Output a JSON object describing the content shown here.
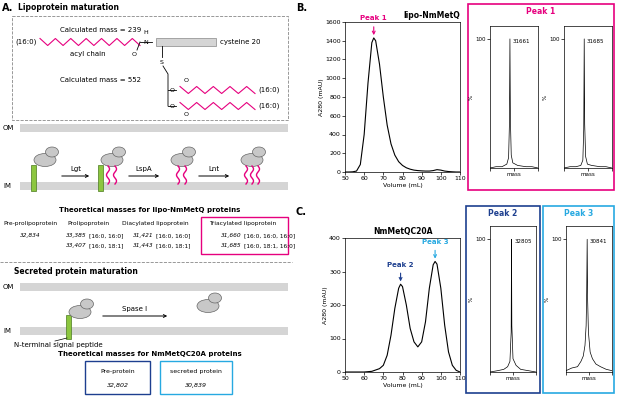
{
  "figure": {
    "panel_labels": [
      "A.",
      "B.",
      "C."
    ],
    "inset_boxes": [
      {
        "title": "Peak 1",
        "color": "#e6007e"
      },
      {
        "title": "Peak 2",
        "color": "#1d3f8f"
      },
      {
        "title": "Peak 3",
        "color": "#27a9e1"
      }
    ]
  },
  "diagram": {
    "lipoprotein": {
      "title": "Lipoprotein maturation",
      "structure": {
        "mass_labels": [
          "Calculated mass = 239",
          "Calculated mass = 552"
        ],
        "acyl_label": "acyl chain",
        "residue_label": "cysteine 20",
        "chain_labels": [
          "(16:0)",
          "(16:0)",
          "(16:0)"
        ],
        "atoms": [
          "O",
          "H",
          "N",
          "S",
          "O",
          "O",
          "O",
          "O"
        ]
      },
      "membranes": [
        "OM",
        "IM"
      ],
      "enzymes": [
        "Lgt",
        "LspA",
        "Lnt"
      ],
      "table_title": "Theoretical masses for lipo-NmMetQ proteins",
      "columns": [
        {
          "header": "Pre-prolipoprotein",
          "entries": [
            {
              "mass": "32,834"
            }
          ]
        },
        {
          "header": "Prolipoprotein",
          "entries": [
            {
              "mass": "33,385",
              "acyl": "[16:0, 16:0]"
            },
            {
              "mass": "33,407",
              "acyl": "[16:0, 18:1]"
            }
          ]
        },
        {
          "header": "Diacylated lipoprotein",
          "entries": [
            {
              "mass": "31,421",
              "acyl": "[16:0, 16:0]"
            },
            {
              "mass": "31,443",
              "acyl": "[16:0, 18:1]"
            }
          ]
        },
        {
          "header": "Triacylated lipoprotein",
          "entries": [
            {
              "mass": "31,660",
              "acyl": "[16:0, 16:0, 16:0]"
            },
            {
              "mass": "31,685",
              "acyl": "[16:0, 18:1, 16:0]"
            }
          ]
        }
      ],
      "box_color": "#e6007e"
    },
    "secreted": {
      "title": "Secreted protein maturation",
      "membranes": [
        "OM",
        "IM"
      ],
      "signal_label": "N-terminal signal peptide",
      "enzyme": "Spase I",
      "table_title": "Theoretical masses for NmMetQC20A proteins",
      "columns": [
        {
          "header": "Pre-protein",
          "mass": "32,802",
          "color": "#1d3f8f"
        },
        {
          "header": "secreted protein",
          "mass": "30,839",
          "color": "#27a9e1"
        }
      ]
    }
  },
  "chart_data": [
    {
      "type": "line",
      "title": "lipo-NmMetQ",
      "x_label": "Volume (mL)",
      "y_label": "A280 (mAU)",
      "color": "#000000",
      "x": [
        50,
        52,
        54,
        56,
        58,
        60,
        62,
        64,
        65,
        66,
        68,
        70,
        72,
        74,
        76,
        78,
        80,
        82,
        84,
        86,
        88,
        90,
        92,
        94,
        96,
        98,
        100,
        102,
        104,
        106,
        108,
        110
      ],
      "values": [
        0,
        0,
        2,
        10,
        80,
        400,
        950,
        1380,
        1430,
        1400,
        1150,
        800,
        500,
        300,
        180,
        110,
        70,
        45,
        30,
        20,
        15,
        12,
        10,
        10,
        15,
        25,
        20,
        10,
        5,
        2,
        0,
        0
      ],
      "xlim": [
        50,
        110
      ],
      "xticks": [
        50,
        60,
        70,
        80,
        90,
        100,
        110
      ],
      "ylim": [
        0,
        1600
      ],
      "yticks": [
        0,
        200,
        400,
        600,
        800,
        1000,
        1200,
        1400,
        1600
      ],
      "annotations": [
        {
          "text": "Peak 1",
          "x": 65,
          "y": 1430,
          "color": "#e6007e"
        }
      ]
    },
    {
      "type": "line",
      "x_label": "mass",
      "y_label": "%",
      "color": "#000000",
      "tick_labels": "y",
      "x": [
        30000,
        30500,
        31000,
        31400,
        31550,
        31620,
        31661,
        31700,
        31770,
        31900,
        32300,
        33000,
        33500,
        34000
      ],
      "values": [
        0,
        1,
        1,
        3,
        8,
        35,
        100,
        38,
        10,
        4,
        2,
        1,
        1,
        0
      ],
      "xlim": [
        30000,
        34000
      ],
      "xticks": [
        30000,
        32000,
        34000
      ],
      "ylim": [
        0,
        110
      ],
      "yticks": [
        100
      ],
      "annotations": [
        {
          "text": "31661",
          "x": 31661,
          "y": 100
        }
      ]
    },
    {
      "type": "line",
      "x_label": "mass",
      "y_label": "%",
      "color": "#000000",
      "tick_labels": "y",
      "x": [
        30000,
        30500,
        31000,
        31400,
        31570,
        31645,
        31685,
        31725,
        31800,
        31950,
        32300,
        33000,
        33500,
        34000
      ],
      "values": [
        0,
        1,
        1,
        2,
        6,
        30,
        100,
        34,
        9,
        3,
        2,
        1,
        1,
        0
      ],
      "xlim": [
        30000,
        34000
      ],
      "xticks": [
        30000,
        32000,
        34000
      ],
      "ylim": [
        0,
        110
      ],
      "yticks": [
        100
      ],
      "annotations": [
        {
          "text": "31685",
          "x": 31685,
          "y": 100
        }
      ]
    },
    {
      "type": "line",
      "title": "NmMetQC20A",
      "x_label": "Volume (mL)",
      "y_label": "A280 (mAU)",
      "color": "#000000",
      "x": [
        50,
        55,
        60,
        64,
        68,
        70,
        72,
        74,
        76,
        78,
        79,
        80,
        82,
        84,
        86,
        88,
        90,
        92,
        94,
        96,
        97,
        98,
        100,
        102,
        104,
        106,
        108,
        110
      ],
      "values": [
        0,
        0,
        0,
        2,
        10,
        20,
        50,
        110,
        190,
        250,
        262,
        255,
        200,
        130,
        90,
        75,
        90,
        150,
        250,
        320,
        330,
        322,
        250,
        140,
        60,
        20,
        5,
        0
      ],
      "xlim": [
        50,
        110
      ],
      "xticks": [
        50,
        60,
        70,
        80,
        90,
        100,
        110
      ],
      "ylim": [
        0,
        400
      ],
      "yticks": [
        0,
        100,
        200,
        300,
        400
      ],
      "annotations": [
        {
          "text": "Peak 2",
          "x": 79,
          "y": 262,
          "color": "#1d3f8f"
        },
        {
          "text": "Peak 3",
          "x": 97,
          "y": 330,
          "color": "#27a9e1"
        }
      ]
    },
    {
      "type": "line",
      "x_label": "mass",
      "y_label": "%",
      "color": "#000000",
      "tick_labels": "y",
      "x": [
        30000,
        31000,
        31800,
        32300,
        32600,
        32760,
        32805,
        32850,
        33000,
        33400,
        34000,
        35000,
        36000
      ],
      "values": [
        0,
        1,
        2,
        4,
        8,
        30,
        100,
        35,
        10,
        5,
        2,
        1,
        0
      ],
      "xlim": [
        30000,
        36000
      ],
      "xticks": [
        30000,
        33000,
        36000
      ],
      "ylim": [
        0,
        110
      ],
      "yticks": [
        100
      ],
      "annotations": [
        {
          "text": "32805",
          "x": 32805,
          "y": 100
        }
      ]
    },
    {
      "type": "line",
      "x_label": "mass",
      "y_label": "%",
      "color": "#000000",
      "tick_labels": "y",
      "x": [
        29000,
        29500,
        30000,
        30300,
        30500,
        30650,
        30750,
        30800,
        30841,
        30880,
        30950,
        31100,
        31300,
        31600,
        32000,
        32500,
        33000
      ],
      "values": [
        1,
        3,
        4,
        8,
        12,
        20,
        35,
        60,
        100,
        55,
        30,
        15,
        10,
        6,
        4,
        2,
        1
      ],
      "xlim": [
        29000,
        33000
      ],
      "xticks": [
        29000,
        31000,
        33000
      ],
      "ylim": [
        0,
        110
      ],
      "yticks": [
        100
      ],
      "annotations": [
        {
          "text": "30841",
          "x": 30841,
          "y": 100
        }
      ]
    }
  ]
}
